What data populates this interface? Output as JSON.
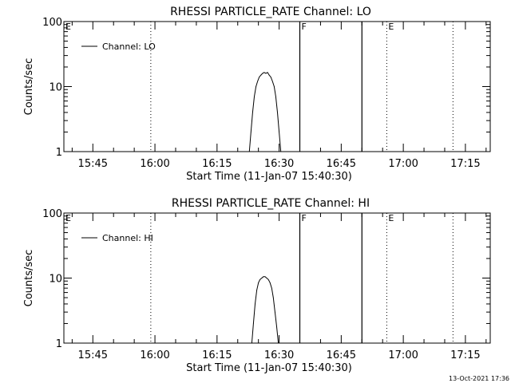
{
  "chart_data": [
    {
      "type": "line",
      "title": "RHESSI PARTICLE_RATE Channel: LO",
      "xlabel": "Start Time (11-Jan-07 15:40:30)",
      "ylabel": "Counts/sec",
      "yscale": "log",
      "ylim": [
        1,
        100
      ],
      "y_ticks": [
        {
          "v": 1,
          "label": "1"
        },
        {
          "v": 10,
          "label": "10"
        },
        {
          "v": 100,
          "label": "100"
        }
      ],
      "xlim": [
        "15:38",
        "17:21"
      ],
      "x_ticks": [
        "15:45",
        "16:00",
        "16:15",
        "16:30",
        "16:45",
        "17:00",
        "17:15"
      ],
      "legend": {
        "label": "Channel: LO",
        "position": "top-left"
      },
      "markers": [
        {
          "label": "F",
          "x": "16:35",
          "style": "solid"
        },
        {
          "label": "",
          "x": "16:50",
          "style": "solid"
        },
        {
          "label": "",
          "x": "15:59",
          "style": "dotted"
        },
        {
          "label": "E",
          "x": "16:56",
          "style": "dotted"
        },
        {
          "label": "",
          "x": "17:12",
          "style": "dotted"
        },
        {
          "label": "E",
          "x": "15:38",
          "style": "none"
        }
      ],
      "series": [
        {
          "name": "Channel: LO",
          "x": [
            "16:22.8",
            "16:23.2",
            "16:23.6",
            "16:24.0",
            "16:24.4",
            "16:24.8",
            "16:25.2",
            "16:25.6",
            "16:26.0",
            "16:26.4",
            "16:26.8",
            "16:27.2",
            "16:27.6",
            "16:28.0",
            "16:28.4",
            "16:28.8",
            "16:29.2",
            "16:29.6",
            "16:30.0",
            "16:30.4"
          ],
          "values": [
            1.0,
            2.0,
            4.0,
            7.0,
            10.0,
            12.0,
            14.0,
            15.0,
            16.0,
            16.5,
            16.0,
            16.5,
            15.0,
            14.0,
            12.0,
            10.0,
            7.0,
            4.0,
            2.0,
            1.0
          ]
        }
      ]
    },
    {
      "type": "line",
      "title": "RHESSI PARTICLE_RATE Channel: HI",
      "xlabel": "Start Time (11-Jan-07 15:40:30)",
      "ylabel": "Counts/sec",
      "yscale": "log",
      "ylim": [
        1,
        100
      ],
      "y_ticks": [
        {
          "v": 1,
          "label": "1"
        },
        {
          "v": 10,
          "label": "10"
        },
        {
          "v": 100,
          "label": "100"
        }
      ],
      "xlim": [
        "15:38",
        "17:21"
      ],
      "x_ticks": [
        "15:45",
        "16:00",
        "16:15",
        "16:30",
        "16:45",
        "17:00",
        "17:15"
      ],
      "legend": {
        "label": "Channel: HI",
        "position": "top-left"
      },
      "markers": [
        {
          "label": "F",
          "x": "16:35",
          "style": "solid"
        },
        {
          "label": "",
          "x": "16:50",
          "style": "solid"
        },
        {
          "label": "",
          "x": "15:59",
          "style": "dotted"
        },
        {
          "label": "E",
          "x": "16:56",
          "style": "dotted"
        },
        {
          "label": "",
          "x": "17:12",
          "style": "dotted"
        },
        {
          "label": "E",
          "x": "15:38",
          "style": "none"
        }
      ],
      "series": [
        {
          "name": "Channel: HI",
          "x": [
            "16:23.4",
            "16:23.8",
            "16:24.2",
            "16:24.6",
            "16:25.0",
            "16:25.4",
            "16:25.8",
            "16:26.2",
            "16:26.6",
            "16:27.0",
            "16:27.4",
            "16:27.8",
            "16:28.2",
            "16:28.6",
            "16:29.0",
            "16:29.4",
            "16:29.8"
          ],
          "values": [
            1.0,
            2.0,
            4.0,
            6.5,
            8.5,
            9.5,
            10.0,
            10.5,
            10.5,
            10.0,
            9.5,
            8.5,
            7.0,
            5.0,
            3.0,
            1.8,
            1.0
          ]
        }
      ]
    }
  ],
  "footer": {
    "timestamp": "13-Oct-2021 17:36"
  }
}
